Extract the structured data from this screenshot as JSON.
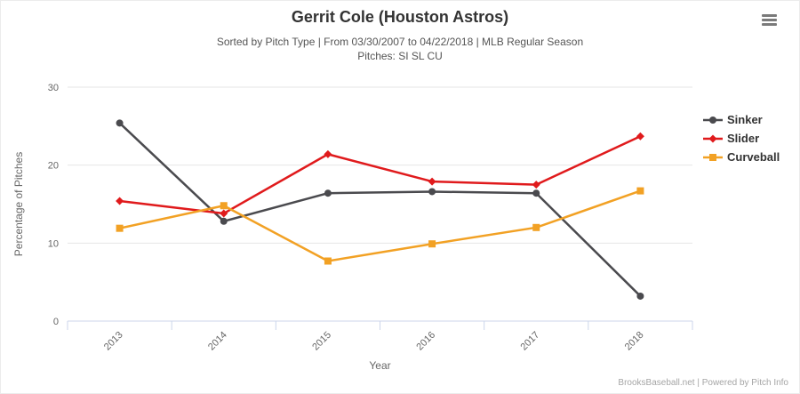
{
  "header": {
    "title": "Gerrit Cole (Houston Astros)",
    "subtitle_line1": "Sorted by Pitch Type | From 03/30/2007 to 04/22/2018 | MLB Regular Season",
    "subtitle_line2": "Pitches: SI SL CU"
  },
  "chart_data": {
    "type": "line",
    "title": "Gerrit Cole (Houston Astros)",
    "categories": [
      "2013",
      "2014",
      "2015",
      "2016",
      "2017",
      "2018"
    ],
    "series": [
      {
        "name": "Sinker",
        "color": "#4a4a4e",
        "marker": "circle",
        "values": [
          25.4,
          12.8,
          16.4,
          16.6,
          16.4,
          3.2
        ]
      },
      {
        "name": "Slider",
        "color": "#e01a1c",
        "marker": "diamond",
        "values": [
          15.4,
          13.8,
          21.4,
          17.9,
          17.5,
          23.7
        ]
      },
      {
        "name": "Curveball",
        "color": "#f2a124",
        "marker": "square",
        "values": [
          11.9,
          14.8,
          7.7,
          9.9,
          12.0,
          16.7
        ]
      }
    ],
    "xlabel": "Year",
    "ylabel": "Percentage of Pitches",
    "ylim": [
      0,
      30
    ],
    "yticks": [
      0,
      10,
      20,
      30
    ],
    "grid": true,
    "legend_position": "right",
    "colors": {
      "gridline": "#e6e6e6",
      "axis_line": "#ccd6eb",
      "tick_label": "#666666",
      "axis_title": "#666666"
    }
  },
  "footer": {
    "credit": "BrooksBaseball.net | Powered by Pitch Info"
  }
}
